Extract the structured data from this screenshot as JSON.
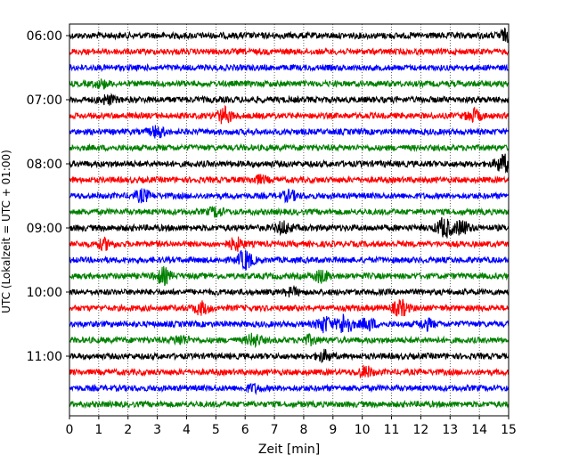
{
  "chart_data": {
    "type": "line",
    "title": "",
    "xlabel": "Zeit  [min]",
    "ylabel": "UTC (Lokalzeit = UTC + 01:00)",
    "xlim": [
      0,
      15
    ],
    "x_ticks": [
      "0",
      "1",
      "2",
      "3",
      "4",
      "5",
      "6",
      "7",
      "8",
      "9",
      "10",
      "11",
      "12",
      "13",
      "14",
      "15"
    ],
    "y_ticks": [
      "06:00",
      "07:00",
      "08:00",
      "09:00",
      "10:00",
      "11:00"
    ],
    "grid": "vertical dotted",
    "trace_colors": [
      "#000000",
      "#ff0000",
      "#0000ff",
      "#008000"
    ],
    "series": [
      {
        "start": "06:00",
        "color": "#000000",
        "amplitude": 0.35,
        "events": [
          {
            "t": 14.9,
            "a": 0.5
          }
        ]
      },
      {
        "start": "06:15",
        "color": "#ff0000",
        "amplitude": 0.33,
        "events": []
      },
      {
        "start": "06:30",
        "color": "#0000ff",
        "amplitude": 0.33,
        "events": []
      },
      {
        "start": "06:45",
        "color": "#008000",
        "amplitude": 0.33,
        "events": [
          {
            "t": 1.1,
            "a": 0.35
          }
        ]
      },
      {
        "start": "07:00",
        "color": "#000000",
        "amplitude": 0.35,
        "events": [
          {
            "t": 1.3,
            "a": 0.4
          }
        ]
      },
      {
        "start": "07:15",
        "color": "#ff0000",
        "amplitude": 0.33,
        "events": [
          {
            "t": 5.3,
            "a": 0.8
          },
          {
            "t": 13.8,
            "a": 0.6
          }
        ]
      },
      {
        "start": "07:30",
        "color": "#0000ff",
        "amplitude": 0.33,
        "events": [
          {
            "t": 3.0,
            "a": 0.55
          }
        ]
      },
      {
        "start": "07:45",
        "color": "#008000",
        "amplitude": 0.33,
        "events": []
      },
      {
        "start": "08:00",
        "color": "#000000",
        "amplitude": 0.35,
        "events": [
          {
            "t": 14.8,
            "a": 0.9
          }
        ]
      },
      {
        "start": "08:15",
        "color": "#ff0000",
        "amplitude": 0.33,
        "events": [
          {
            "t": 6.5,
            "a": 0.35
          }
        ]
      },
      {
        "start": "08:30",
        "color": "#0000ff",
        "amplitude": 0.33,
        "events": [
          {
            "t": 2.5,
            "a": 0.6
          },
          {
            "t": 7.5,
            "a": 0.5
          }
        ]
      },
      {
        "start": "08:45",
        "color": "#008000",
        "amplitude": 0.33,
        "events": [
          {
            "t": 5.0,
            "a": 0.45
          }
        ]
      },
      {
        "start": "09:00",
        "color": "#000000",
        "amplitude": 0.35,
        "events": [
          {
            "t": 7.3,
            "a": 0.6
          },
          {
            "t": 12.8,
            "a": 1.0
          },
          {
            "t": 13.4,
            "a": 0.7
          }
        ]
      },
      {
        "start": "09:15",
        "color": "#ff0000",
        "amplitude": 0.33,
        "events": [
          {
            "t": 1.2,
            "a": 0.5
          },
          {
            "t": 5.7,
            "a": 0.6
          }
        ]
      },
      {
        "start": "09:30",
        "color": "#0000ff",
        "amplitude": 0.33,
        "events": [
          {
            "t": 6.0,
            "a": 1.0
          }
        ]
      },
      {
        "start": "09:45",
        "color": "#008000",
        "amplitude": 0.33,
        "events": [
          {
            "t": 3.2,
            "a": 0.8
          },
          {
            "t": 8.6,
            "a": 0.6
          }
        ]
      },
      {
        "start": "10:00",
        "color": "#000000",
        "amplitude": 0.33,
        "events": [
          {
            "t": 7.6,
            "a": 0.35
          }
        ]
      },
      {
        "start": "10:15",
        "color": "#ff0000",
        "amplitude": 0.33,
        "events": [
          {
            "t": 4.5,
            "a": 0.6
          },
          {
            "t": 11.3,
            "a": 0.8
          }
        ]
      },
      {
        "start": "10:30",
        "color": "#0000ff",
        "amplitude": 0.33,
        "events": [
          {
            "t": 8.7,
            "a": 0.8
          },
          {
            "t": 9.4,
            "a": 1.1
          },
          {
            "t": 10.2,
            "a": 0.6
          },
          {
            "t": 12.2,
            "a": 0.5
          }
        ]
      },
      {
        "start": "10:45",
        "color": "#008000",
        "amplitude": 0.33,
        "events": [
          {
            "t": 3.8,
            "a": 0.45
          },
          {
            "t": 6.3,
            "a": 0.6
          },
          {
            "t": 8.2,
            "a": 0.4
          }
        ]
      },
      {
        "start": "11:00",
        "color": "#000000",
        "amplitude": 0.33,
        "events": [
          {
            "t": 8.7,
            "a": 0.5
          }
        ]
      },
      {
        "start": "11:15",
        "color": "#ff0000",
        "amplitude": 0.33,
        "events": [
          {
            "t": 10.1,
            "a": 0.55
          }
        ]
      },
      {
        "start": "11:30",
        "color": "#0000ff",
        "amplitude": 0.33,
        "events": [
          {
            "t": 6.3,
            "a": 0.35
          }
        ]
      },
      {
        "start": "11:45",
        "color": "#008000",
        "amplitude": 0.33,
        "events": []
      }
    ]
  }
}
